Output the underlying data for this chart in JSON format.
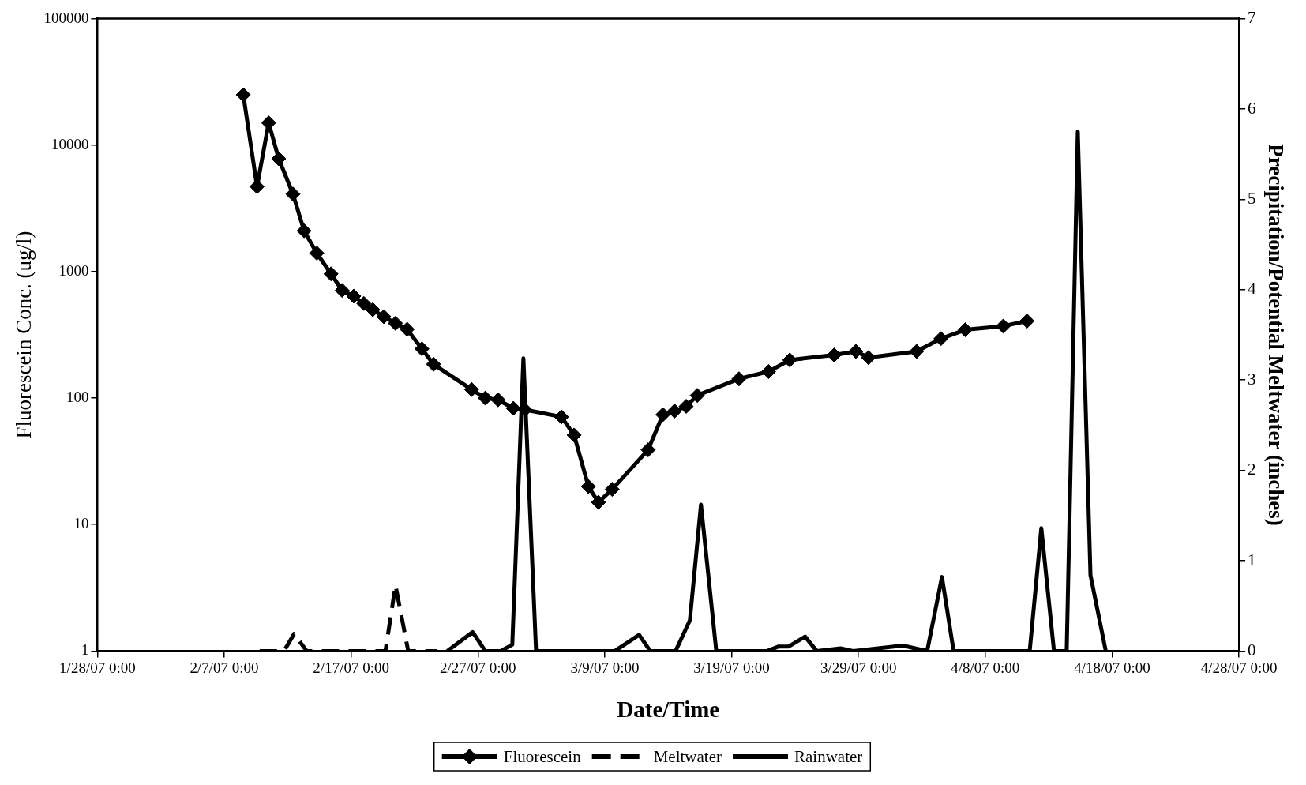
{
  "chart_data": {
    "type": "line",
    "xlabel": "Date/Time",
    "ylabel": "Fluorescein Conc. (ug/l)",
    "y2label": "Precipitation/Potential Meltwater (inches)",
    "xlim": [
      "--01-28",
      "--04-28"
    ],
    "xticks": [
      {
        "value": "--01-28",
        "label": "1/28/07 0:00"
      },
      {
        "value": "--02-07",
        "label": "2/7/07 0:00"
      },
      {
        "value": "--02-17",
        "label": "2/17/07 0:00"
      },
      {
        "value": "--02-27",
        "label": "2/27/07 0:00"
      },
      {
        "value": "--03-09",
        "label": "3/9/07 0:00"
      },
      {
        "value": "--03-19",
        "label": "3/19/07 0:00"
      },
      {
        "value": "--03-29",
        "label": "3/29/07 0:00"
      },
      {
        "value": "--04-08",
        "label": "4/8/07 0:00"
      },
      {
        "value": "--04-18",
        "label": "4/18/07 0:00"
      },
      {
        "value": "--04-28",
        "label": "4/28/07 0:00"
      }
    ],
    "log": "y",
    "ylim": [
      1,
      100000
    ],
    "yticks": [
      1,
      10,
      100,
      1000,
      10000,
      100000
    ],
    "y2lim": [
      0,
      7
    ],
    "y2ticks": [
      0,
      1,
      2,
      3,
      4,
      5,
      6,
      7
    ],
    "grid": false,
    "legend": "bottom",
    "series": [
      {
        "name": "Fluorescein",
        "color": "#000000",
        "marker": "diamond",
        "line_style": "solid",
        "x": [
          "--02-08T12:00",
          "--02-09T14:00",
          "--02-10T12:00",
          "--02-11T07:00",
          "--02-12T10:00",
          "--02-13T07:00",
          "--02-14T07:00",
          "--02-15T10:00",
          "--02-16T07:00",
          "--02-17T05:00",
          "--02-18T00:00",
          "--02-18T17:00",
          "--02-19T14:00",
          "--02-20T12:00",
          "--02-21T10:00",
          "--02-22T14:00",
          "--02-23T12:00",
          "--02-26T12:00",
          "--02-27T14:00",
          "--02-28T14:00",
          "--03-01T19:00",
          "--03-02T17:00",
          "--03-05T14:00",
          "--03-06T14:00",
          "--03-07T17:00",
          "--03-08T12:00",
          "--03-09T14:00",
          "--03-12T10:00",
          "--03-13T14:00",
          "--03-14T12:00",
          "--03-15T10:00",
          "--03-16T07:00",
          "--03-19T14:00",
          "--03-21T22:00",
          "--03-23T14:00",
          "--03-27T02:00",
          "--03-28T19:00",
          "--03-29T19:00",
          "--04-02T14:00",
          "--04-04T12:00",
          "--04-06T10:00",
          "--04-09T10:00",
          "--04-11T07:00"
        ],
        "values": [
          25000,
          4700,
          15000,
          7800,
          4100,
          2100,
          1400,
          960,
          710,
          640,
          560,
          500,
          440,
          390,
          350,
          245,
          185,
          117,
          100,
          97,
          83,
          81,
          71,
          51,
          20,
          15,
          19,
          39,
          74,
          79,
          86,
          105,
          142,
          162,
          200,
          219,
          234,
          209,
          234,
          295,
          347,
          371,
          407
        ]
      },
      {
        "name": "Meltwater",
        "color": "#000000",
        "marker": "none",
        "line_style": "dashed",
        "axis": "y2",
        "x": [
          "--02-09T19:00",
          "--02-11T17:00",
          "--02-12T12:00",
          "--02-13T12:00",
          "--02-19T17:00",
          "--02-20T12:00",
          "--02-21T12:00",
          "--02-23T19:00"
        ],
        "values": [
          0,
          0,
          0.19,
          0,
          0,
          0.73,
          0,
          0
        ]
      },
      {
        "name": "Rainwater",
        "color": "#000000",
        "marker": "none",
        "line_style": "solid",
        "axis": "y2",
        "x": [
          "--02-24T14:00",
          "--02-26T14:00",
          "--02-27T14:00",
          "--02-28T19:00",
          "--03-01T17:00",
          "--03-02T14:00",
          "--03-03T14:00",
          "--03-09T19:00",
          "--03-11T17:00",
          "--03-12T14:00",
          "--03-14T14:00",
          "--03-15T17:00",
          "--03-16T14:00",
          "--03-17T19:00",
          "--03-21T19:00",
          "--03-22T17:00",
          "--03-23T12:00",
          "--03-24T19:00",
          "--03-25T17:00",
          "--03-27T14:00",
          "--03-28T14:00",
          "--04-01T12:00",
          "--04-03T10:00",
          "--04-04T14:00",
          "--04-05T12:00",
          "--04-11T12:00",
          "--04-12T10:00",
          "--04-13T10:00",
          "--04-14T10:00",
          "--04-15T07:00",
          "--04-16T07:00",
          "--04-17T12:00"
        ],
        "values": [
          0,
          0.21,
          0,
          0,
          0.07,
          3.24,
          0,
          0,
          0.18,
          0,
          0,
          0.34,
          1.62,
          0,
          0,
          0.05,
          0.05,
          0.16,
          0,
          0.03,
          0,
          0.06,
          0,
          0.82,
          0,
          0,
          1.36,
          0,
          0,
          5.75,
          0.84,
          0
        ]
      }
    ]
  }
}
